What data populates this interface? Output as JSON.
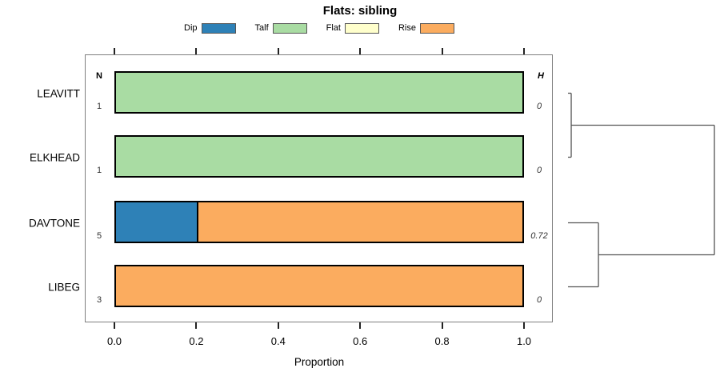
{
  "title": "Flats: sibling",
  "xlabel": "Proportion",
  "columns": {
    "n_header": "N",
    "h_header": "H"
  },
  "legend": [
    {
      "label": "Dip",
      "color": "#2e81b7"
    },
    {
      "label": "Talf",
      "color": "#a9dca3"
    },
    {
      "label": "Flat",
      "color": "#ffffcc"
    },
    {
      "label": "Rise",
      "color": "#fbac5f"
    }
  ],
  "colors": {
    "bar_border": "#000000",
    "box_border": "#7f7f7f",
    "dendrogram_line": "#555555"
  },
  "chart_data": {
    "type": "bar",
    "orientation": "horizontal-stacked",
    "title": "Flats: sibling",
    "xlabel": "Proportion",
    "xlim": [
      0,
      1
    ],
    "grid": false,
    "legend_position": "top",
    "categories": [
      "LEAVITT",
      "ELKHEAD",
      "DAVTONE",
      "LIBEG"
    ],
    "series": [
      {
        "name": "Dip",
        "color": "#2e81b7",
        "values": [
          0,
          0,
          0.2,
          0
        ]
      },
      {
        "name": "Talf",
        "color": "#a9dca3",
        "values": [
          1,
          1,
          0,
          0
        ]
      },
      {
        "name": "Flat",
        "color": "#ffffcc",
        "values": [
          0,
          0,
          0,
          0
        ]
      },
      {
        "name": "Rise",
        "color": "#fbac5f",
        "values": [
          0,
          0,
          0.8,
          1
        ]
      }
    ],
    "n_values": [
      "1",
      "1",
      "5",
      "3"
    ],
    "h_values": [
      "0",
      "0",
      "0.72",
      "0"
    ],
    "x_ticks": [
      "0.0",
      "0.2",
      "0.4",
      "0.6",
      "0.8",
      "1.0"
    ],
    "x_tick_values": [
      0,
      0.2,
      0.4,
      0.6,
      0.8,
      1.0
    ],
    "dendrogram": {
      "clusters": [
        {
          "leaves": [
            0,
            1
          ],
          "height": 0.022
        },
        {
          "leaves": [
            2,
            3
          ],
          "height": 0.208
        }
      ],
      "root_height": 1.0
    }
  }
}
